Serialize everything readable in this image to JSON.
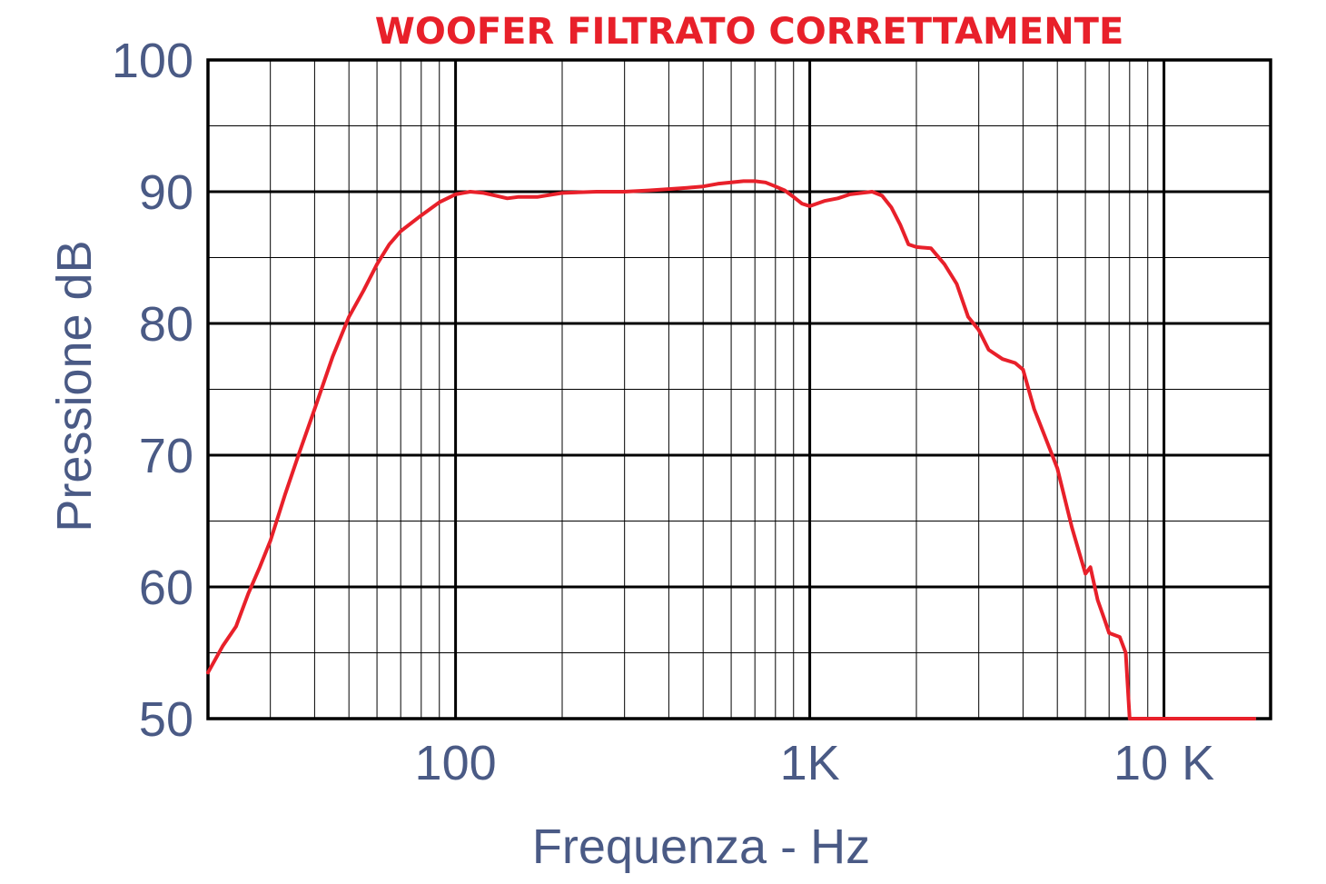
{
  "chart_data": {
    "type": "line",
    "title": "WOOFER FILTRATO CORRETTAMENTE",
    "xlabel": "Frequenza - Hz",
    "ylabel": "Pressione  dB",
    "x_scale": "log",
    "xlim": [
      20,
      20000
    ],
    "ylim": [
      50,
      100
    ],
    "grid": true,
    "y_ticks": [
      "50",
      "60",
      "70",
      "80",
      "90",
      "100"
    ],
    "x_tick_labels": [
      {
        "value": 100,
        "label": "100"
      },
      {
        "value": 1000,
        "label": "1K"
      },
      {
        "value": 10000,
        "label": "10 K"
      }
    ],
    "colors": {
      "line": "#e8202a",
      "text": "#4a5a85",
      "grid": "#000000"
    },
    "series": [
      {
        "x": [
          20,
          22,
          24,
          26,
          28,
          30,
          33,
          36,
          40,
          45,
          50,
          55,
          60,
          65,
          70,
          80,
          90,
          100,
          110,
          120,
          130,
          140,
          150,
          170,
          200,
          250,
          300,
          350,
          400,
          450,
          500,
          550,
          600,
          650,
          700,
          750,
          800,
          850,
          900,
          950,
          1000,
          1100,
          1200,
          1300,
          1400,
          1500,
          1600,
          1700,
          1800,
          1900,
          2000,
          2200,
          2400,
          2600,
          2800,
          3000,
          3200,
          3500,
          3800,
          4000,
          4300,
          4600,
          5000,
          5500,
          6000,
          6200,
          6500,
          6800,
          7000,
          7500,
          7800,
          8000,
          9000,
          10000,
          12000,
          15000,
          18000
        ],
        "y": [
          53.5,
          55.5,
          57,
          59.5,
          61.5,
          63.5,
          67,
          70,
          73.5,
          77.5,
          80.5,
          82.5,
          84.5,
          86,
          87,
          88.2,
          89.2,
          89.8,
          90,
          89.9,
          89.7,
          89.5,
          89.6,
          89.6,
          89.9,
          90,
          90,
          90.1,
          90.2,
          90.3,
          90.4,
          90.6,
          90.7,
          90.8,
          90.8,
          90.7,
          90.4,
          90.1,
          89.6,
          89.1,
          88.9,
          89.3,
          89.5,
          89.8,
          89.9,
          90,
          89.7,
          88.8,
          87.5,
          86,
          85.8,
          85.7,
          84.5,
          83,
          80.5,
          79.5,
          78,
          77.3,
          77,
          76.5,
          73.5,
          71.5,
          69,
          64.5,
          61,
          61.5,
          59,
          57.5,
          56.5,
          56.2,
          55,
          50,
          50,
          50,
          50,
          50,
          50
        ]
      }
    ]
  }
}
